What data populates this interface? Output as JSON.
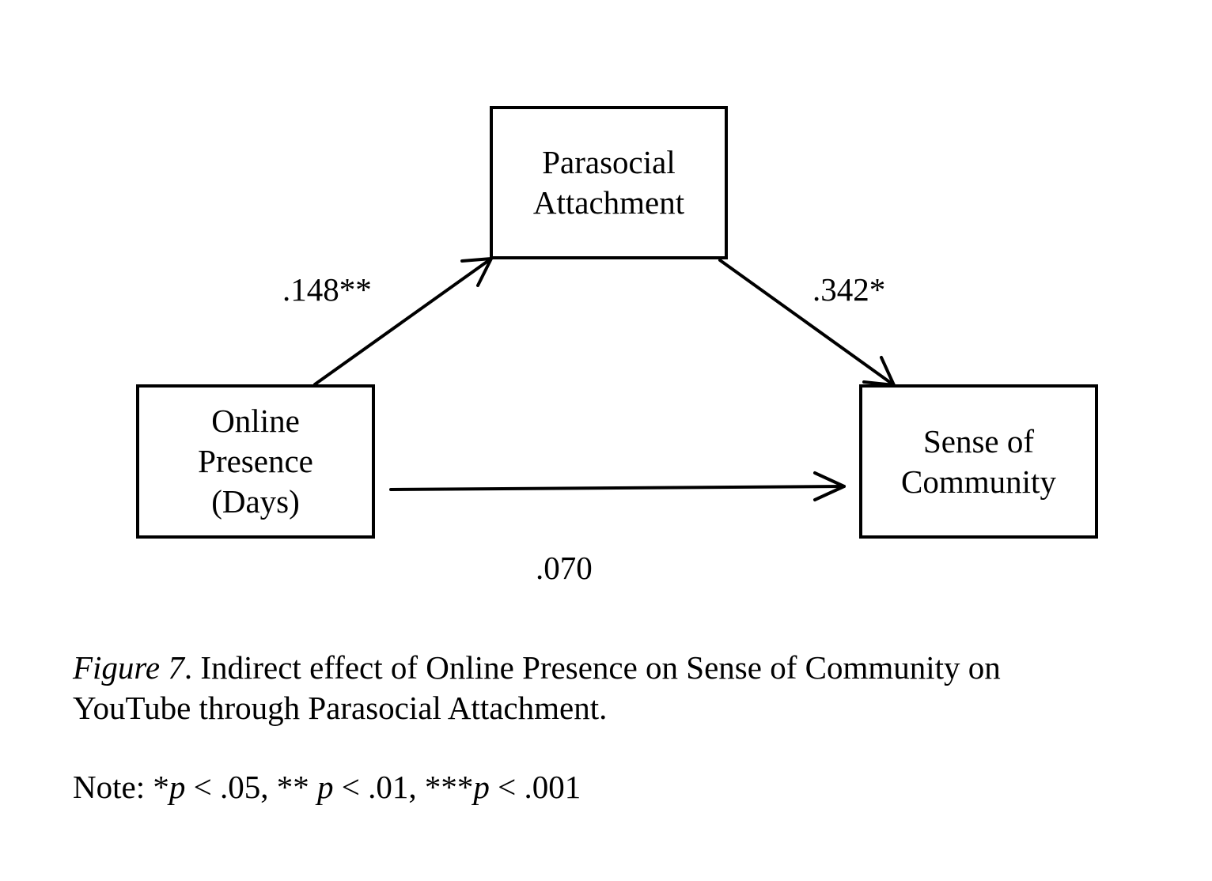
{
  "nodes": {
    "mediator": {
      "lines": [
        "Parasocial",
        "Attachment"
      ]
    },
    "predictor": {
      "lines": [
        "Online",
        "Presence",
        "(Days)"
      ]
    },
    "outcome": {
      "lines": [
        "Sense of",
        "Community"
      ]
    }
  },
  "paths": {
    "a": {
      "from": "predictor",
      "to": "mediator",
      "label": ".148**"
    },
    "b": {
      "from": "mediator",
      "to": "outcome",
      "label": ".342*"
    },
    "c": {
      "from": "predictor",
      "to": "outcome",
      "label": ".070"
    }
  },
  "caption": {
    "figure_label": "Figure 7",
    "line1_rest": ". Indirect effect of Online Presence on Sense of Community on",
    "line2": "YouTube through Parasocial Attachment."
  },
  "note": {
    "prefix": "Note: *",
    "p1": "p",
    "t1": " < .05, ** ",
    "p2": "p",
    "t2": " < .01, ***",
    "p3": "p",
    "t3": " < .001"
  }
}
